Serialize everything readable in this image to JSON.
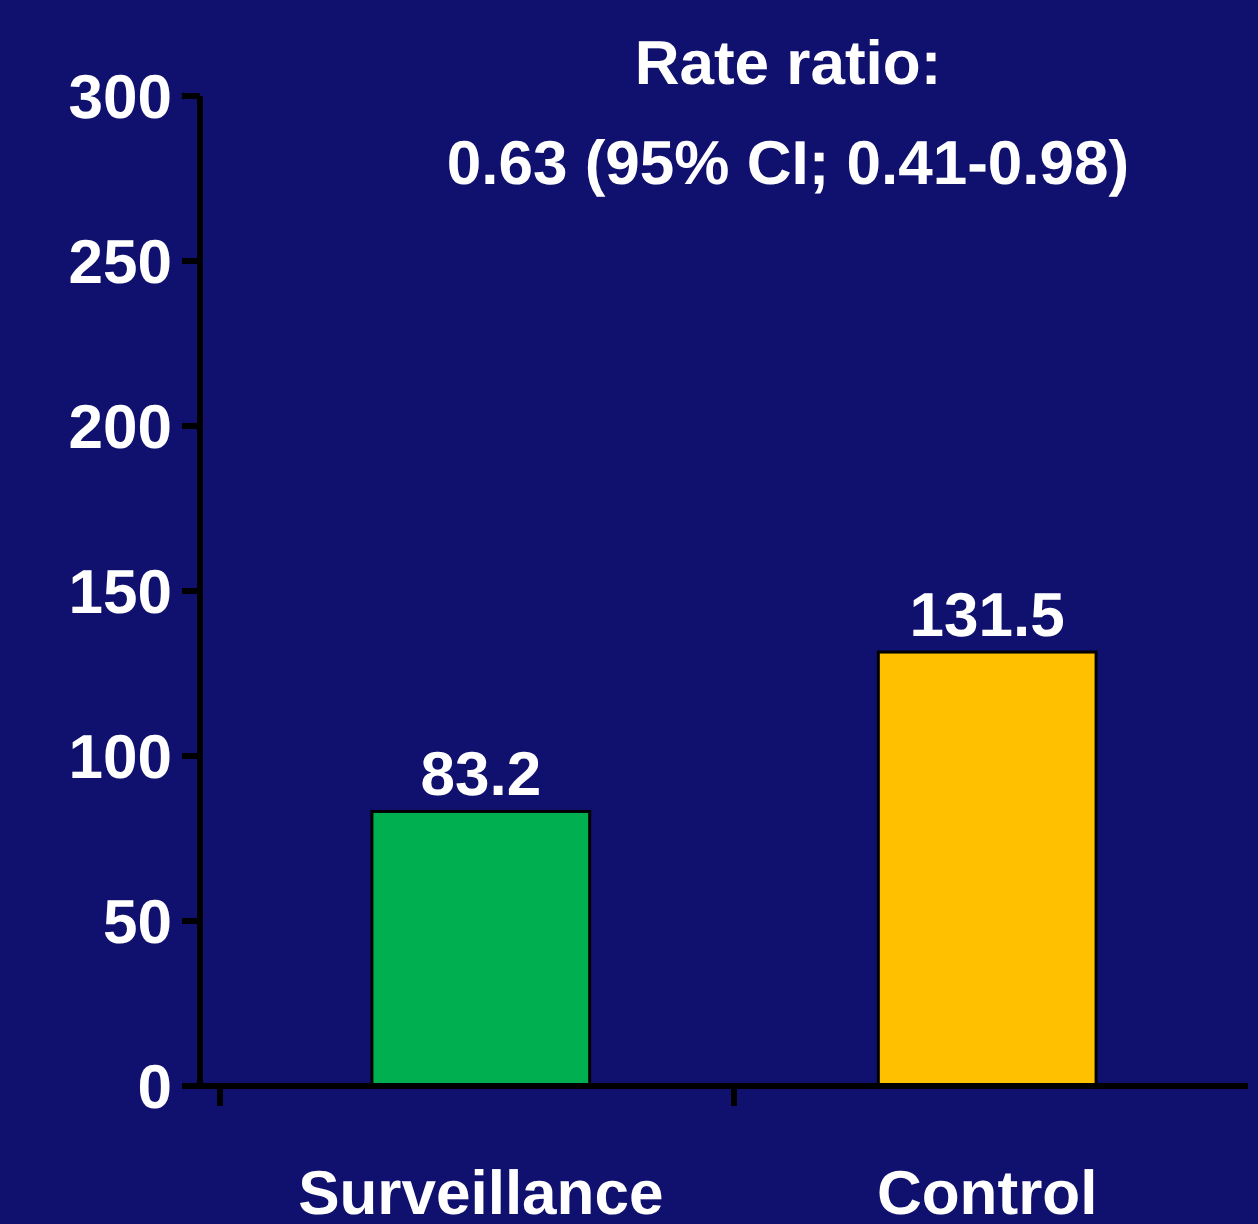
{
  "chart_data": {
    "type": "bar",
    "title": "Rate ratio:\n0.63 (95% CI; 0.41-0.98)",
    "categories": [
      "Surveillance",
      "Control"
    ],
    "values": [
      83.2,
      131.5
    ],
    "colors": [
      "#00b050",
      "#ffc000"
    ],
    "ylim": [
      0,
      300
    ],
    "yticks": [
      0,
      50,
      100,
      150,
      200,
      250,
      300
    ],
    "data_labels": true
  }
}
